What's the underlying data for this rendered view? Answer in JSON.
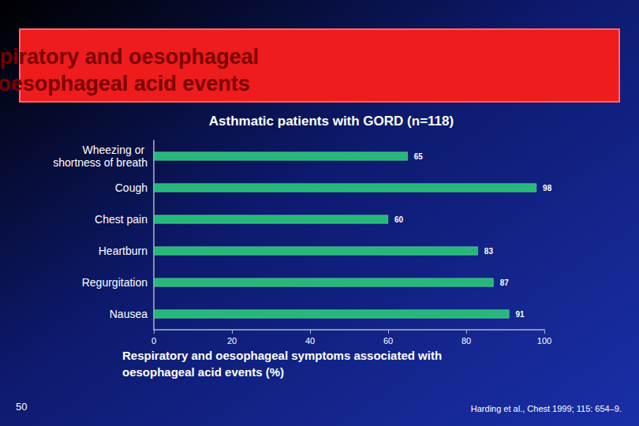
{
  "chart_data": {
    "type": "bar",
    "orientation": "horizontal",
    "title": "Correlation of respiratory and oesophageal symptoms with oesophageal acid events",
    "subtitle": "Asthmatic patients with GORD (n=118)",
    "x_label": "Respiratory and oesophageal symptoms associated with oesophageal acid events (%)",
    "footnote": "Harding et al., Chest 1999; 115: 654–9.",
    "page_number": "50",
    "categories": [
      "Wheezing or shortness of breath",
      "Cough",
      "Chest pain",
      "Heartburn",
      "Regurgitation",
      "Nausea"
    ],
    "values": [
      65,
      98,
      60,
      83,
      87,
      91
    ],
    "color": "#25b878",
    "xlim": [
      0,
      100
    ],
    "xticks": [
      0,
      20,
      40,
      60,
      80,
      100
    ],
    "grid": false,
    "data_labels": true
  }
}
